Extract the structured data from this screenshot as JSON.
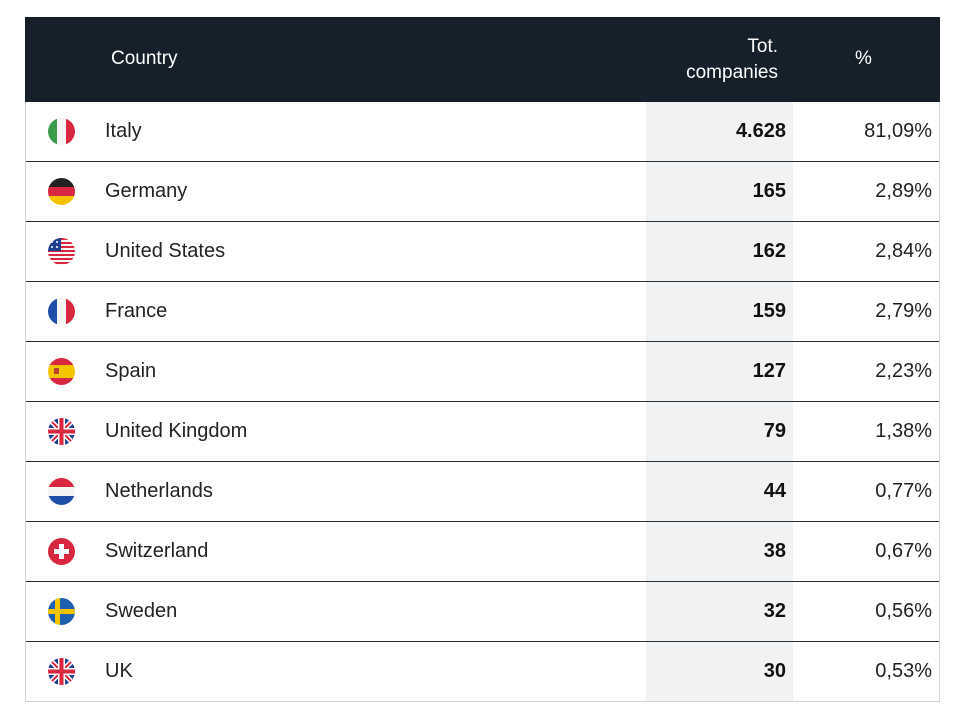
{
  "chart_data": {
    "type": "table",
    "columns": [
      "Country",
      "Tot.\ncompanies",
      "%"
    ],
    "rows": [
      {
        "country": "Italy",
        "flag": "italy-flag-icon",
        "total": "4.628",
        "pct": "81,09%"
      },
      {
        "country": "Germany",
        "flag": "germany-flag-icon",
        "total": "165",
        "pct": "2,89%"
      },
      {
        "country": "United States",
        "flag": "united-states-flag-icon",
        "total": "162",
        "pct": "2,84%"
      },
      {
        "country": "France",
        "flag": "france-flag-icon",
        "total": "159",
        "pct": "2,79%"
      },
      {
        "country": "Spain",
        "flag": "spain-flag-icon",
        "total": "127",
        "pct": "2,23%"
      },
      {
        "country": "United Kingdom",
        "flag": "united-kingdom-flag-icon",
        "total": "79",
        "pct": "1,38%"
      },
      {
        "country": "Netherlands",
        "flag": "netherlands-flag-icon",
        "total": "44",
        "pct": "0,77%"
      },
      {
        "country": "Switzerland",
        "flag": "switzerland-flag-icon",
        "total": "38",
        "pct": "0,67%"
      },
      {
        "country": "Sweden",
        "flag": "sweden-flag-icon",
        "total": "32",
        "pct": "0,56%"
      },
      {
        "country": "UK",
        "flag": "united-kingdom-flag-icon",
        "total": "30",
        "pct": "0,53%"
      }
    ]
  },
  "colors": {
    "header_bg": "#15202b",
    "shade": "#f1f2f3"
  }
}
